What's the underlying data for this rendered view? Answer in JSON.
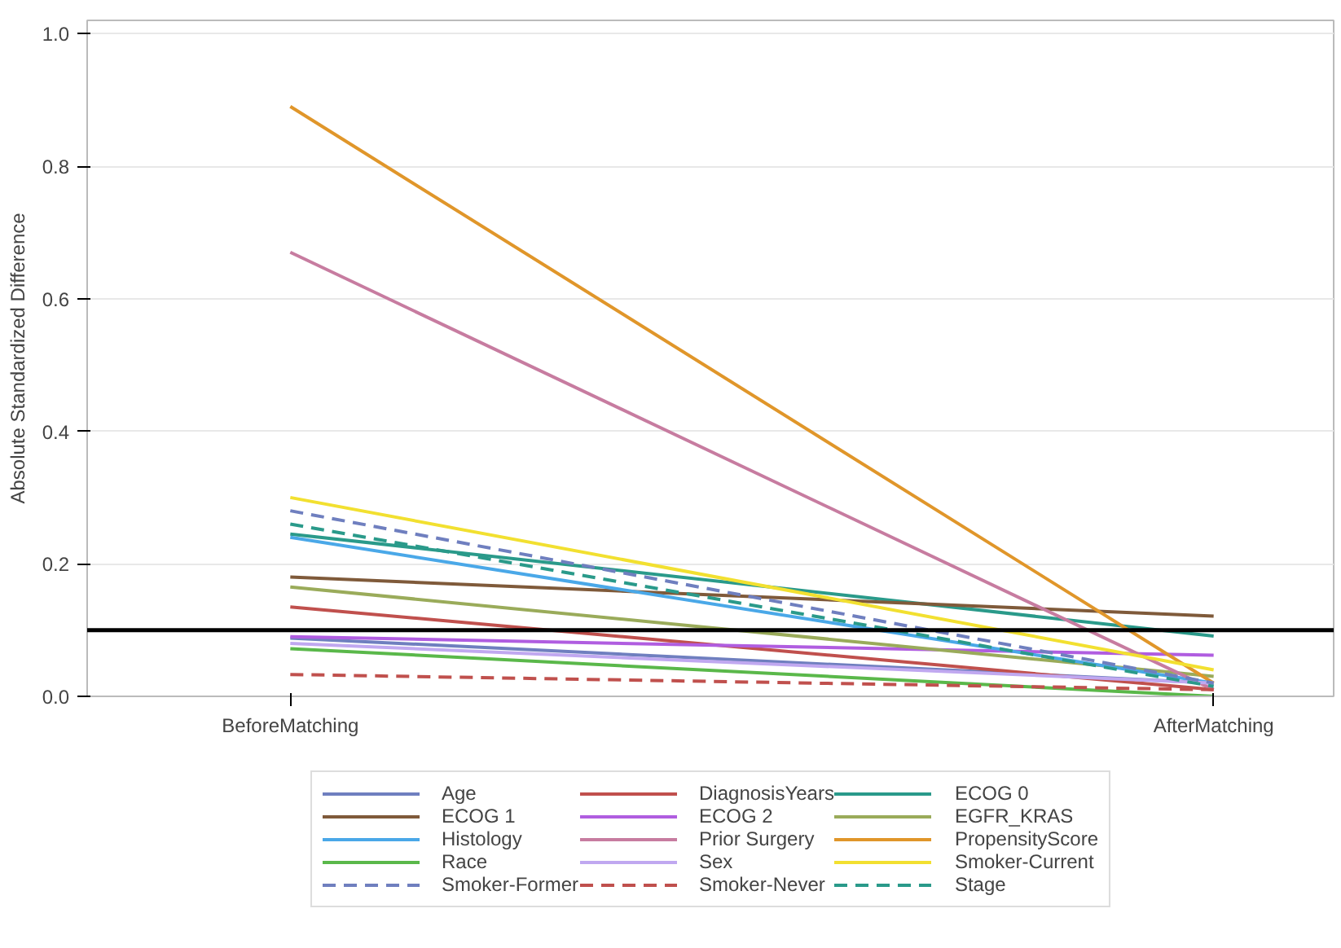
{
  "chart_data": {
    "type": "line",
    "ylabel": "Absolute Standardized Difference",
    "categories": [
      "BeforeMatching",
      "AfterMatching"
    ],
    "ylim": [
      0,
      1.02
    ],
    "yticks": [
      {
        "value": 0,
        "label": "0.0"
      },
      0.2,
      0.4,
      0.6,
      0.8,
      {
        "value": 1,
        "label": "1.0"
      }
    ],
    "grid": "y",
    "legend": "bottom",
    "marker": "none",
    "ref_lines": [
      {
        "axis": "y",
        "value": 0.1,
        "label": null,
        "color": "#000000"
      }
    ],
    "series": [
      {
        "name": "Age",
        "color": "#6f7fbf",
        "values": [
          0.088,
          0.02
        ]
      },
      {
        "name": "DiagnosisYears",
        "color": "#c0504d",
        "values": [
          0.135,
          0.01
        ]
      },
      {
        "name": "ECOG 0",
        "color": "#2a9a8a",
        "values": [
          0.245,
          0.091
        ]
      },
      {
        "name": "ECOG 1",
        "color": "#7f5a3a",
        "values": [
          0.18,
          0.121
        ]
      },
      {
        "name": "ECOG 2",
        "color": "#b05de0",
        "values": [
          0.09,
          0.062
        ]
      },
      {
        "name": "EGFR_KRAS",
        "color": "#9aab5a",
        "values": [
          0.165,
          0.03
        ]
      },
      {
        "name": "Histology",
        "color": "#4aa8e8",
        "values": [
          0.24,
          0.02
        ]
      },
      {
        "name": "Prior Surgery",
        "color": "#c77ca0",
        "values": [
          0.67,
          0.01
        ]
      },
      {
        "name": "PropensityScore",
        "color": "#e0962a",
        "values": [
          0.89,
          0.02
        ]
      },
      {
        "name": "Race",
        "color": "#5ab84a",
        "values": [
          0.072,
          0.0
        ]
      },
      {
        "name": "Sex",
        "color": "#c0a8f0",
        "values": [
          0.08,
          0.02
        ]
      },
      {
        "name": "Smoker-Current",
        "color": "#f2e030",
        "values": [
          0.3,
          0.04
        ]
      },
      {
        "name": "Smoker-Former",
        "color": "#6f7fbf",
        "line_style": "dashed",
        "values": [
          0.28,
          0.02
        ]
      },
      {
        "name": "Smoker-Never",
        "color": "#c0504d",
        "line_style": "dashed",
        "values": [
          0.033,
          0.01
        ]
      },
      {
        "name": "Stage",
        "color": "#2a9a8a",
        "line_style": "dashed",
        "values": [
          0.26,
          0.015
        ]
      }
    ]
  }
}
